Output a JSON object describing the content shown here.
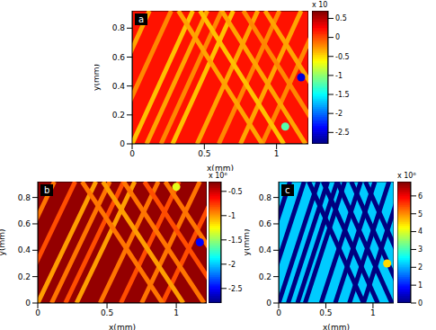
{
  "chart_data": [
    {
      "type": "heatmap",
      "title": "a",
      "xlabel": "x(mm)",
      "ylabel": "y(mm)",
      "xlim": [
        0,
        1.22
      ],
      "ylim": [
        0,
        0.92
      ],
      "xticks": [
        0,
        0.5,
        1
      ],
      "yticks": [
        0,
        0.2,
        0.4,
        0.6,
        0.8
      ],
      "background": 0.2,
      "stripes": [
        {
          "x": [
            -0.3,
            0.12
          ],
          "y": [
            0,
            0.92
          ],
          "value": -0.3
        },
        {
          "x": [
            -0.15,
            0.27
          ],
          "y": [
            0,
            0.92
          ],
          "value": -0.2
        },
        {
          "x": [
            0.0,
            0.42
          ],
          "y": [
            0,
            0.92
          ],
          "value": -0.4
        },
        {
          "x": [
            0.1,
            0.52
          ],
          "y": [
            0,
            0.92
          ],
          "value": -0.3
        },
        {
          "x": [
            0.2,
            0.62
          ],
          "y": [
            0,
            0.92
          ],
          "value": -0.2
        },
        {
          "x": [
            0.28,
            0.7
          ],
          "y": [
            0,
            0.92
          ],
          "value": -0.4
        },
        {
          "x": [
            0.45,
            0.87
          ],
          "y": [
            0,
            0.92
          ],
          "value": -0.3
        },
        {
          "x": [
            0.6,
            1.02
          ],
          "y": [
            0,
            0.92
          ],
          "value": -0.2
        },
        {
          "x": [
            0.75,
            1.17
          ],
          "y": [
            0,
            0.92
          ],
          "value": -0.3
        },
        {
          "x": [
            0.9,
            1.32
          ],
          "y": [
            0,
            0.92
          ],
          "value": -0.2
        },
        {
          "x": [
            0.9,
            0.32
          ],
          "y": [
            0,
            0.92
          ],
          "value": -0.3
        },
        {
          "x": [
            1.05,
            0.47
          ],
          "y": [
            0,
            0.92
          ],
          "value": -0.4
        },
        {
          "x": [
            1.2,
            0.62
          ],
          "y": [
            0,
            0.92
          ],
          "value": -0.3
        },
        {
          "x": [
            1.35,
            0.77
          ],
          "y": [
            0,
            0.92
          ],
          "value": -0.2
        },
        {
          "x": [
            1.5,
            0.92
          ],
          "y": [
            0,
            0.92
          ],
          "value": -0.3
        }
      ],
      "spots": [
        {
          "x": 1.17,
          "y": 0.46,
          "value": -2.5
        },
        {
          "x": 1.06,
          "y": 0.12,
          "value": -1.2
        }
      ],
      "colorbar": {
        "range": [
          -2.8,
          0.7
        ],
        "ticks": [
          -2.5,
          -2,
          -1.5,
          -1,
          -0.5,
          0,
          0.5
        ],
        "label": "x 10"
      }
    },
    {
      "type": "heatmap",
      "title": "b",
      "xlabel": "x(mm)",
      "ylabel": "y(mm)",
      "xlim": [
        0,
        1.22
      ],
      "ylim": [
        0,
        0.92
      ],
      "xticks": [
        0,
        0.5,
        1
      ],
      "yticks": [
        0,
        0.2,
        0.4,
        0.6,
        0.8
      ],
      "background": -0.35,
      "stripes": [
        {
          "x": [
            -0.3,
            0.12
          ],
          "y": [
            0,
            0.92
          ],
          "value": -0.9
        },
        {
          "x": [
            -0.15,
            0.27
          ],
          "y": [
            0,
            0.92
          ],
          "value": -0.8
        },
        {
          "x": [
            0.0,
            0.42
          ],
          "y": [
            0,
            0.92
          ],
          "value": -1.0
        },
        {
          "x": [
            0.1,
            0.52
          ],
          "y": [
            0,
            0.92
          ],
          "value": -0.9
        },
        {
          "x": [
            0.2,
            0.62
          ],
          "y": [
            0,
            0.92
          ],
          "value": -0.8
        },
        {
          "x": [
            0.28,
            0.7
          ],
          "y": [
            0,
            0.92
          ],
          "value": -1.0
        },
        {
          "x": [
            0.45,
            0.87
          ],
          "y": [
            0,
            0.92
          ],
          "value": -0.9
        },
        {
          "x": [
            0.6,
            1.02
          ],
          "y": [
            0,
            0.92
          ],
          "value": -0.8
        },
        {
          "x": [
            0.75,
            1.17
          ],
          "y": [
            0,
            0.92
          ],
          "value": -0.9
        },
        {
          "x": [
            0.9,
            1.32
          ],
          "y": [
            0,
            0.92
          ],
          "value": -0.8
        },
        {
          "x": [
            0.9,
            0.32
          ],
          "y": [
            0,
            0.92
          ],
          "value": -0.9
        },
        {
          "x": [
            1.05,
            0.47
          ],
          "y": [
            0,
            0.92
          ],
          "value": -1.0
        },
        {
          "x": [
            1.2,
            0.62
          ],
          "y": [
            0,
            0.92
          ],
          "value": -0.9
        },
        {
          "x": [
            1.35,
            0.77
          ],
          "y": [
            0,
            0.92
          ],
          "value": -0.8
        },
        {
          "x": [
            1.5,
            0.92
          ],
          "y": [
            0,
            0.92
          ],
          "value": -0.9
        }
      ],
      "spots": [
        {
          "x": 1.17,
          "y": 0.46,
          "value": -2.5
        },
        {
          "x": 1.0,
          "y": 0.88,
          "value": -1.3
        }
      ],
      "colorbar": {
        "range": [
          -2.8,
          -0.3
        ],
        "ticks": [
          -2.5,
          -2,
          -1.5,
          -1,
          -0.5
        ],
        "label": "x 10⁶"
      }
    },
    {
      "type": "heatmap",
      "title": "c",
      "xlabel": "x(mm)",
      "ylabel": "y(mm)",
      "xlim": [
        0,
        1.22
      ],
      "ylim": [
        0,
        0.92
      ],
      "xticks": [
        0,
        0.5,
        1
      ],
      "yticks": [
        0,
        0.2,
        0.4,
        0.6,
        0.8
      ],
      "background": 2.2,
      "stripes": [
        {
          "x": [
            -0.3,
            0.12
          ],
          "y": [
            0,
            0.92
          ],
          "value": 0
        },
        {
          "x": [
            -0.15,
            0.27
          ],
          "y": [
            0,
            0.92
          ],
          "value": 0
        },
        {
          "x": [
            0.0,
            0.42
          ],
          "y": [
            0,
            0.92
          ],
          "value": 0
        },
        {
          "x": [
            0.1,
            0.52
          ],
          "y": [
            0,
            0.92
          ],
          "value": 0
        },
        {
          "x": [
            0.2,
            0.62
          ],
          "y": [
            0,
            0.92
          ],
          "value": 0
        },
        {
          "x": [
            0.28,
            0.7
          ],
          "y": [
            0,
            0.92
          ],
          "value": 0
        },
        {
          "x": [
            0.45,
            0.87
          ],
          "y": [
            0,
            0.92
          ],
          "value": 0
        },
        {
          "x": [
            0.6,
            1.02
          ],
          "y": [
            0,
            0.92
          ],
          "value": 0
        },
        {
          "x": [
            0.75,
            1.17
          ],
          "y": [
            0,
            0.92
          ],
          "value": 0
        },
        {
          "x": [
            0.9,
            1.32
          ],
          "y": [
            0,
            0.92
          ],
          "value": 0
        },
        {
          "x": [
            0.9,
            0.32
          ],
          "y": [
            0,
            0.92
          ],
          "value": 0
        },
        {
          "x": [
            1.05,
            0.47
          ],
          "y": [
            0,
            0.92
          ],
          "value": 0
        },
        {
          "x": [
            1.2,
            0.62
          ],
          "y": [
            0,
            0.92
          ],
          "value": 0
        },
        {
          "x": [
            1.35,
            0.77
          ],
          "y": [
            0,
            0.92
          ],
          "value": 0
        },
        {
          "x": [
            1.5,
            0.92
          ],
          "y": [
            0,
            0.92
          ],
          "value": 0
        }
      ],
      "spots": [
        {
          "x": 1.15,
          "y": 0.3,
          "value": 4.5
        }
      ],
      "colorbar": {
        "range": [
          0,
          6.8
        ],
        "ticks": [
          0,
          1,
          2,
          3,
          4,
          5,
          6
        ],
        "label": "x 10⁶"
      }
    }
  ]
}
